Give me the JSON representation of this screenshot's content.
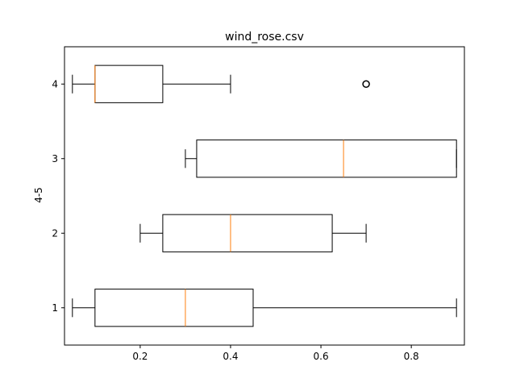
{
  "chart_data": {
    "type": "boxplot",
    "orientation": "horizontal",
    "title": "wind_rose.csv",
    "xlabel": "",
    "ylabel": "4-5",
    "xlim": [
      0.0325,
      0.9175
    ],
    "xticks": [
      0.2,
      0.4,
      0.6,
      0.8
    ],
    "xtick_labels": [
      "0.2",
      "0.4",
      "0.6",
      "0.8"
    ],
    "categories": [
      "1",
      "2",
      "3",
      "4"
    ],
    "boxes": [
      {
        "category": "1",
        "whislo": 0.05,
        "q1": 0.1,
        "med": 0.3,
        "q3": 0.45,
        "whishi": 0.9,
        "fliers": []
      },
      {
        "category": "2",
        "whislo": 0.2,
        "q1": 0.25,
        "med": 0.4,
        "q3": 0.625,
        "whishi": 0.7,
        "fliers": []
      },
      {
        "category": "3",
        "whislo": 0.3,
        "q1": 0.325,
        "med": 0.65,
        "q3": 0.9,
        "whishi": 0.9,
        "fliers": []
      },
      {
        "category": "4",
        "whislo": 0.05,
        "q1": 0.1,
        "med": 0.1,
        "q3": 0.25,
        "whishi": 0.4,
        "fliers": [
          0.7
        ]
      }
    ],
    "grid": false,
    "colors": {
      "box": "#000000",
      "median": "#ff7f0e",
      "flier": "#000000"
    }
  }
}
